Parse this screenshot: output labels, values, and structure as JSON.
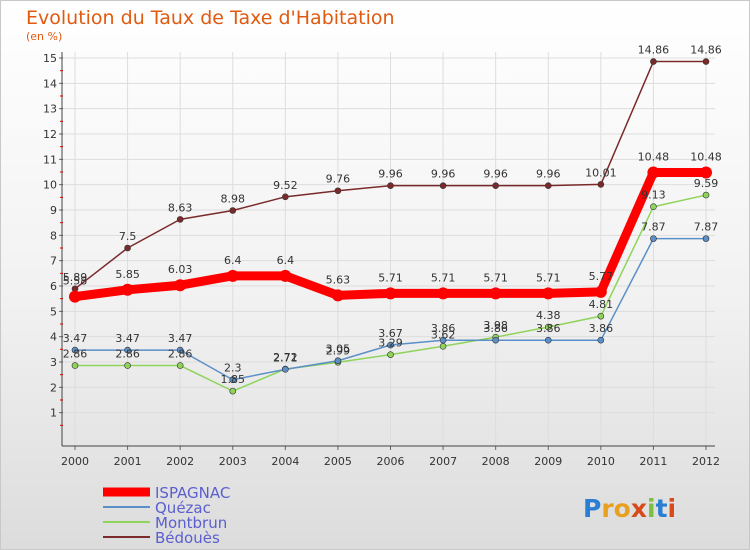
{
  "chart_data": {
    "type": "line",
    "title": "Evolution du Taux de Taxe d'Habitation",
    "subtitle": "(en %)",
    "x": [
      "2000",
      "2001",
      "2002",
      "2003",
      "2004",
      "2005",
      "2006",
      "2007",
      "2008",
      "2009",
      "2010",
      "2011",
      "2012"
    ],
    "ylim": [
      0,
      15
    ],
    "yticks": [
      "1",
      "2",
      "3",
      "4",
      "5",
      "6",
      "7",
      "8",
      "9",
      "10",
      "11",
      "12",
      "13",
      "14",
      "15"
    ],
    "grid": true,
    "legend_position": "bottom-left",
    "series": [
      {
        "name": "ISPAGNAC",
        "color": "#ff0000",
        "values": [
          5.58,
          5.85,
          6.03,
          6.4,
          6.4,
          5.63,
          5.71,
          5.71,
          5.71,
          5.71,
          5.77,
          10.48,
          10.48
        ]
      },
      {
        "name": "Quézac",
        "color": "#5b8fc7",
        "values": [
          3.47,
          3.47,
          3.47,
          2.3,
          2.71,
          3.05,
          3.67,
          3.86,
          3.86,
          3.86,
          3.86,
          7.87,
          7.87
        ]
      },
      {
        "name": "Montbrun",
        "color": "#8fd45a",
        "values": [
          2.86,
          2.86,
          2.86,
          1.85,
          2.72,
          2.99,
          3.29,
          3.62,
          3.98,
          4.38,
          4.81,
          9.13,
          9.59
        ]
      },
      {
        "name": "Bédouès",
        "color": "#7a2a2a",
        "values": [
          5.89,
          7.5,
          8.63,
          8.98,
          9.52,
          9.76,
          9.96,
          9.96,
          9.96,
          9.96,
          10.01,
          14.86,
          14.86
        ]
      }
    ]
  },
  "logo": {
    "text": "Proxiti"
  }
}
